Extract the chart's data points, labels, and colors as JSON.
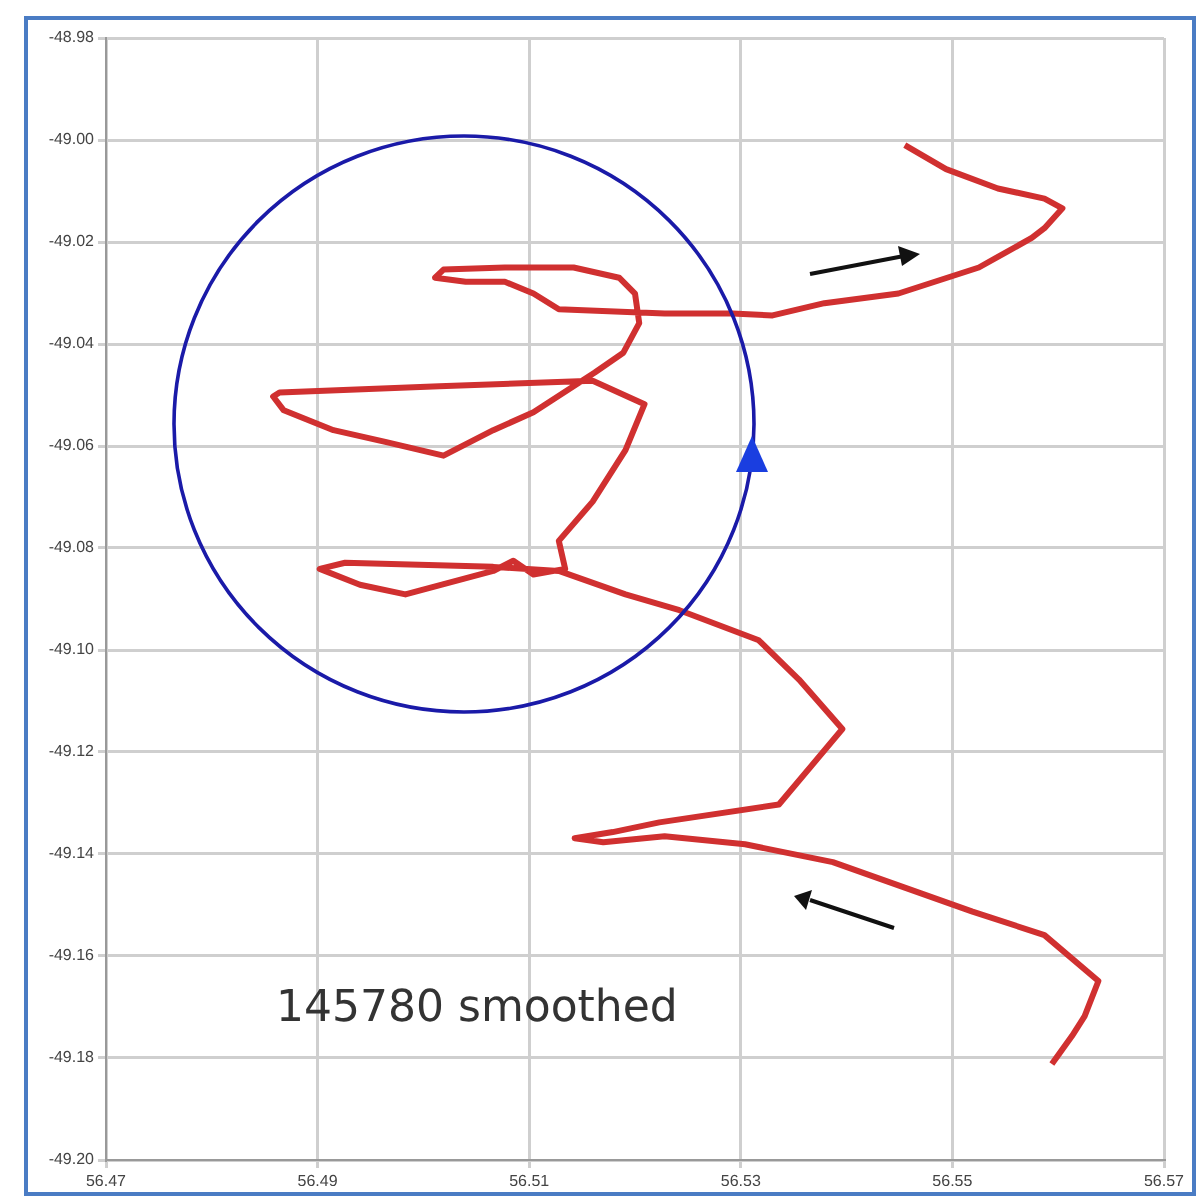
{
  "chart_data": {
    "type": "line",
    "x": [
      56.5455,
      56.5494,
      56.5543,
      56.5587,
      56.5604,
      56.5587,
      56.5575,
      56.5525,
      56.5449,
      56.5379,
      56.533,
      56.5292,
      56.5228,
      56.5128,
      56.5104,
      56.5077,
      56.504,
      56.5011,
      56.5019,
      56.5077,
      56.5142,
      56.5185,
      56.52,
      56.5204,
      56.5189,
      56.5162,
      56.5147,
      56.5104,
      56.5066,
      56.5019,
      56.4964,
      56.4915,
      56.4868,
      56.4858,
      56.4864,
      56.5015,
      56.516,
      56.5209,
      56.5191,
      56.516,
      56.5128,
      56.5134,
      56.5104,
      56.5085,
      56.5066,
      56.4983,
      56.494,
      56.4902,
      56.4926,
      56.5066,
      56.5128,
      56.5191,
      56.5242,
      56.5317,
      56.5355,
      56.5396,
      56.5336,
      56.5223,
      56.5179,
      56.5143,
      56.517,
      56.5228,
      56.5304,
      56.5387,
      56.5455,
      56.5519,
      56.5587,
      56.5638,
      56.5625,
      56.5613,
      56.5594
    ],
    "series": [
      {
        "color": "#d03030",
        "values": [
          -49.001,
          -49.0057,
          -49.0095,
          -49.0115,
          -49.0134,
          -49.0173,
          -49.0192,
          -49.025,
          -49.0301,
          -49.032,
          -49.0344,
          -49.034,
          -49.034,
          -49.0332,
          -49.0301,
          -49.0278,
          -49.0278,
          -49.027,
          -49.0254,
          -49.025,
          -49.025,
          -49.027,
          -49.0301,
          -49.0359,
          -49.0417,
          -49.0456,
          -49.0476,
          -49.0534,
          -49.0569,
          -49.0619,
          -49.0592,
          -49.0569,
          -49.053,
          -49.0503,
          -49.0495,
          -49.0483,
          -49.0472,
          -49.0518,
          -49.0608,
          -49.0709,
          -49.0786,
          -49.0841,
          -49.0852,
          -49.0825,
          -49.0845,
          -49.0891,
          -49.0872,
          -49.0841,
          -49.0829,
          -49.0837,
          -49.0845,
          -49.0891,
          -49.0922,
          -49.0981,
          -49.1058,
          -49.1155,
          -49.1303,
          -49.1338,
          -49.1357,
          -49.1369,
          -49.1377,
          -49.1365,
          -49.1381,
          -49.1416,
          -49.1466,
          -49.1513,
          -49.1559,
          -49.1649,
          -49.1718,
          -49.1757,
          -49.1812
        ]
      }
    ],
    "xlim": [
      56.47,
      56.57
    ],
    "xticks": [
      56.47,
      56.49,
      56.51,
      56.53,
      56.55,
      56.57
    ],
    "ylim": [
      -49.2,
      -48.98
    ],
    "yticks": [
      -48.98,
      {
        "value": -49,
        "label": "-49.00"
      },
      -49.02,
      -49.04,
      -49.06,
      -49.08,
      {
        "value": -49.1,
        "label": "-49.10"
      },
      -49.12,
      -49.14,
      -49.16,
      -49.18,
      {
        "value": -49.2,
        "label": "-49.20"
      }
    ],
    "grid": true,
    "annotations": [
      "145780 smoothed"
    ]
  }
}
